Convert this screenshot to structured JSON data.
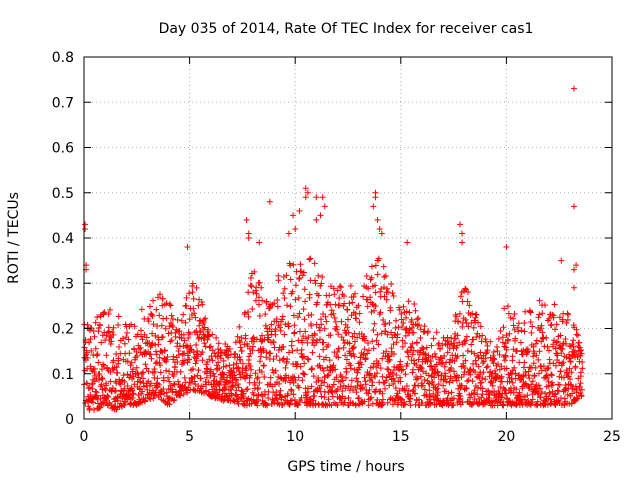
{
  "chart_data": {
    "type": "scatter",
    "title": "Day 035 of 2014, Rate Of TEC Index for receiver cas1",
    "xlabel": "GPS time / hours",
    "ylabel": "ROTI / TECUs",
    "xlim": [
      0,
      25
    ],
    "ylim": [
      0,
      0.8
    ],
    "xticks": [
      0,
      5,
      10,
      15,
      20,
      25
    ],
    "yticks": [
      0,
      0.1,
      0.2,
      0.3,
      0.4,
      0.5,
      0.6,
      0.7,
      0.8
    ],
    "xtick_labels": [
      "0",
      "5",
      "10",
      "15",
      "20",
      "25"
    ],
    "ytick_labels": [
      "0",
      "0.1",
      "0.2",
      "0.3",
      "0.4",
      "0.5",
      "0.6",
      "0.7",
      "0.8"
    ],
    "grid": true,
    "marker": "+",
    "color": "#ff0000",
    "envelope": {
      "x": [
        0,
        0.5,
        1,
        1.5,
        2,
        2.5,
        3,
        3.5,
        4,
        4.5,
        5,
        5.5,
        6,
        6.5,
        7,
        7.5,
        8,
        8.5,
        9,
        9.5,
        10,
        10.5,
        11,
        11.5,
        12,
        12.5,
        13,
        13.5,
        14,
        14.5,
        15,
        15.5,
        16,
        16.5,
        17,
        17.5,
        18,
        18.5,
        19,
        19.5,
        20,
        20.5,
        21,
        21.5,
        22,
        22.5,
        23,
        23.5
      ],
      "low": [
        0.02,
        0.02,
        0.03,
        0.02,
        0.03,
        0.03,
        0.04,
        0.05,
        0.03,
        0.05,
        0.06,
        0.06,
        0.05,
        0.04,
        0.04,
        0.03,
        0.03,
        0.03,
        0.03,
        0.03,
        0.03,
        0.03,
        0.03,
        0.03,
        0.03,
        0.03,
        0.03,
        0.03,
        0.03,
        0.03,
        0.03,
        0.03,
        0.03,
        0.03,
        0.03,
        0.03,
        0.03,
        0.03,
        0.03,
        0.03,
        0.03,
        0.03,
        0.03,
        0.03,
        0.03,
        0.03,
        0.03,
        0.05
      ],
      "high": [
        0.22,
        0.24,
        0.25,
        0.24,
        0.21,
        0.22,
        0.27,
        0.29,
        0.27,
        0.22,
        0.33,
        0.28,
        0.19,
        0.17,
        0.17,
        0.22,
        0.36,
        0.3,
        0.32,
        0.34,
        0.36,
        0.38,
        0.34,
        0.3,
        0.33,
        0.3,
        0.28,
        0.34,
        0.36,
        0.3,
        0.28,
        0.27,
        0.22,
        0.2,
        0.18,
        0.22,
        0.3,
        0.25,
        0.19,
        0.15,
        0.28,
        0.24,
        0.24,
        0.26,
        0.28,
        0.24,
        0.24,
        0.19
      ]
    },
    "outliers": [
      {
        "x": 0.05,
        "y": 0.43
      },
      {
        "x": 0.05,
        "y": 0.42
      },
      {
        "x": 0.1,
        "y": 0.34
      },
      {
        "x": 0.1,
        "y": 0.33
      },
      {
        "x": 4.9,
        "y": 0.38
      },
      {
        "x": 7.7,
        "y": 0.44
      },
      {
        "x": 7.8,
        "y": 0.41
      },
      {
        "x": 7.8,
        "y": 0.4
      },
      {
        "x": 8.8,
        "y": 0.48
      },
      {
        "x": 8.3,
        "y": 0.39
      },
      {
        "x": 9.7,
        "y": 0.41
      },
      {
        "x": 9.9,
        "y": 0.45
      },
      {
        "x": 10.0,
        "y": 0.42
      },
      {
        "x": 10.5,
        "y": 0.51
      },
      {
        "x": 10.6,
        "y": 0.5
      },
      {
        "x": 10.5,
        "y": 0.49
      },
      {
        "x": 10.2,
        "y": 0.46
      },
      {
        "x": 11.0,
        "y": 0.49
      },
      {
        "x": 11.3,
        "y": 0.49
      },
      {
        "x": 11.4,
        "y": 0.47
      },
      {
        "x": 11.2,
        "y": 0.45
      },
      {
        "x": 11.0,
        "y": 0.44
      },
      {
        "x": 13.8,
        "y": 0.5
      },
      {
        "x": 13.8,
        "y": 0.49
      },
      {
        "x": 13.7,
        "y": 0.47
      },
      {
        "x": 13.9,
        "y": 0.44
      },
      {
        "x": 14.0,
        "y": 0.42
      },
      {
        "x": 14.1,
        "y": 0.41
      },
      {
        "x": 15.3,
        "y": 0.39
      },
      {
        "x": 17.8,
        "y": 0.43
      },
      {
        "x": 17.9,
        "y": 0.41
      },
      {
        "x": 17.9,
        "y": 0.39
      },
      {
        "x": 20.0,
        "y": 0.38
      },
      {
        "x": 22.6,
        "y": 0.35
      },
      {
        "x": 23.2,
        "y": 0.73
      },
      {
        "x": 23.2,
        "y": 0.47
      },
      {
        "x": 23.3,
        "y": 0.34
      },
      {
        "x": 23.2,
        "y": 0.33
      },
      {
        "x": 23.2,
        "y": 0.29
      }
    ],
    "n_points": 2600,
    "seed": 35
  }
}
